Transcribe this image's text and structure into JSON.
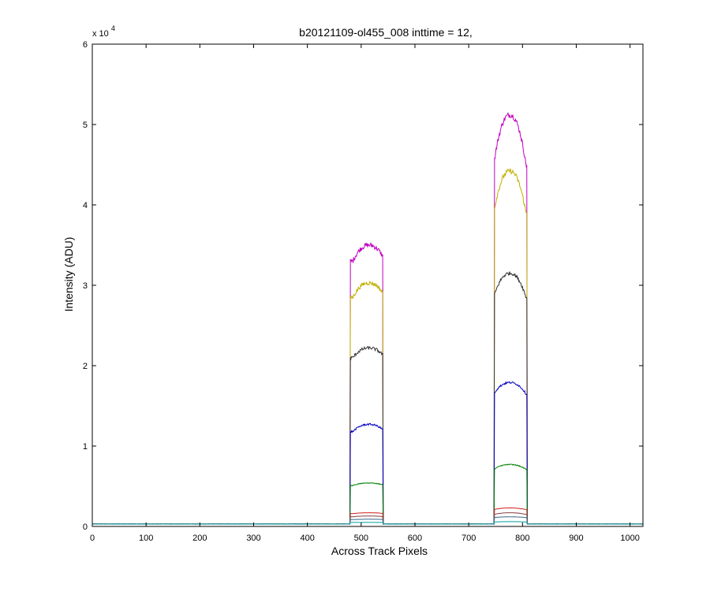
{
  "chart_data": {
    "type": "line",
    "title": "b20121109-ol455_008 inttime = 12,",
    "xlabel": "Across Track Pixels",
    "ylabel": "Intensity (ADU)",
    "xlim": [
      0,
      1024
    ],
    "ylim": [
      0,
      60000
    ],
    "x_ticks": [
      0,
      100,
      200,
      300,
      400,
      500,
      600,
      700,
      800,
      900,
      1000
    ],
    "y_ticks": [
      0,
      10000,
      20000,
      30000,
      40000,
      50000,
      60000
    ],
    "y_tick_labels": [
      "0",
      "1",
      "2",
      "3",
      "4",
      "5",
      "6"
    ],
    "y_exponent_base": "x 10",
    "y_exponent_power": "4",
    "grid": false,
    "baseline": 300,
    "segments": [
      {
        "name": "bar1",
        "x_start": 480,
        "x_end": 540
      },
      {
        "name": "bar2",
        "x_start": 748,
        "x_end": 808
      }
    ],
    "series": [
      {
        "color": "#c000c0",
        "peak1": 35000,
        "edge1": 33000,
        "peak2": 51200,
        "edge2": 45000
      },
      {
        "color": "#c0b000",
        "peak1": 30300,
        "edge1": 28500,
        "peak2": 44200,
        "edge2": 39000
      },
      {
        "color": "#333333",
        "peak1": 22200,
        "edge1": 21000,
        "peak2": 31500,
        "edge2": 28500
      },
      {
        "color": "#0000c0",
        "peak1": 12700,
        "edge1": 11800,
        "peak2": 17900,
        "edge2": 16500
      },
      {
        "color": "#008000",
        "peak1": 5400,
        "edge1": 5100,
        "peak2": 7700,
        "edge2": 7100
      },
      {
        "color": "#d02020",
        "peak1": 1700,
        "edge1": 1600,
        "peak2": 2300,
        "edge2": 2100
      },
      {
        "color": "#8b4040",
        "peak1": 1300,
        "edge1": 1200,
        "peak2": 1700,
        "edge2": 1500
      },
      {
        "color": "#3a6a8a",
        "peak1": 900,
        "edge1": 850,
        "peak2": 1200,
        "edge2": 1100
      },
      {
        "color": "#00a0a0",
        "peak1": 500,
        "edge1": 500,
        "peak2": 600,
        "edge2": 550
      }
    ]
  }
}
